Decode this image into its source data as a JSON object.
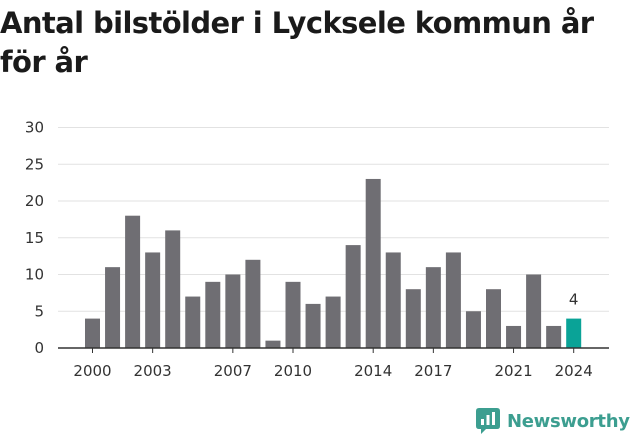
{
  "title": "Antal bilstölder i Lycksele kommun år för år",
  "brand": {
    "name": "Newsworthy"
  },
  "colors": {
    "bar": "#6f6e73",
    "highlight": "#0aa397",
    "grid": "#e2e2e2",
    "axis": "#333333",
    "brand": "#3c9e90"
  },
  "chart_data": {
    "type": "bar",
    "title": "Antal bilstölder i Lycksele kommun år för år",
    "xlabel": "",
    "ylabel": "",
    "categories": [
      2000,
      2001,
      2002,
      2003,
      2004,
      2005,
      2006,
      2007,
      2008,
      2009,
      2010,
      2011,
      2012,
      2013,
      2014,
      2015,
      2016,
      2017,
      2018,
      2019,
      2020,
      2021,
      2022,
      2023,
      2024
    ],
    "values": [
      4,
      11,
      18,
      13,
      16,
      7,
      9,
      10,
      12,
      1,
      9,
      6,
      7,
      14,
      23,
      13,
      8,
      11,
      13,
      5,
      8,
      3,
      10,
      3,
      4
    ],
    "ylim": [
      0,
      30
    ],
    "yticks": [
      0,
      5,
      10,
      15,
      20,
      25,
      30
    ],
    "xticks": [
      2000,
      2003,
      2007,
      2010,
      2014,
      2017,
      2021,
      2024
    ],
    "highlight": {
      "category": 2024,
      "label": "4"
    },
    "grid": true,
    "legend": "none"
  }
}
